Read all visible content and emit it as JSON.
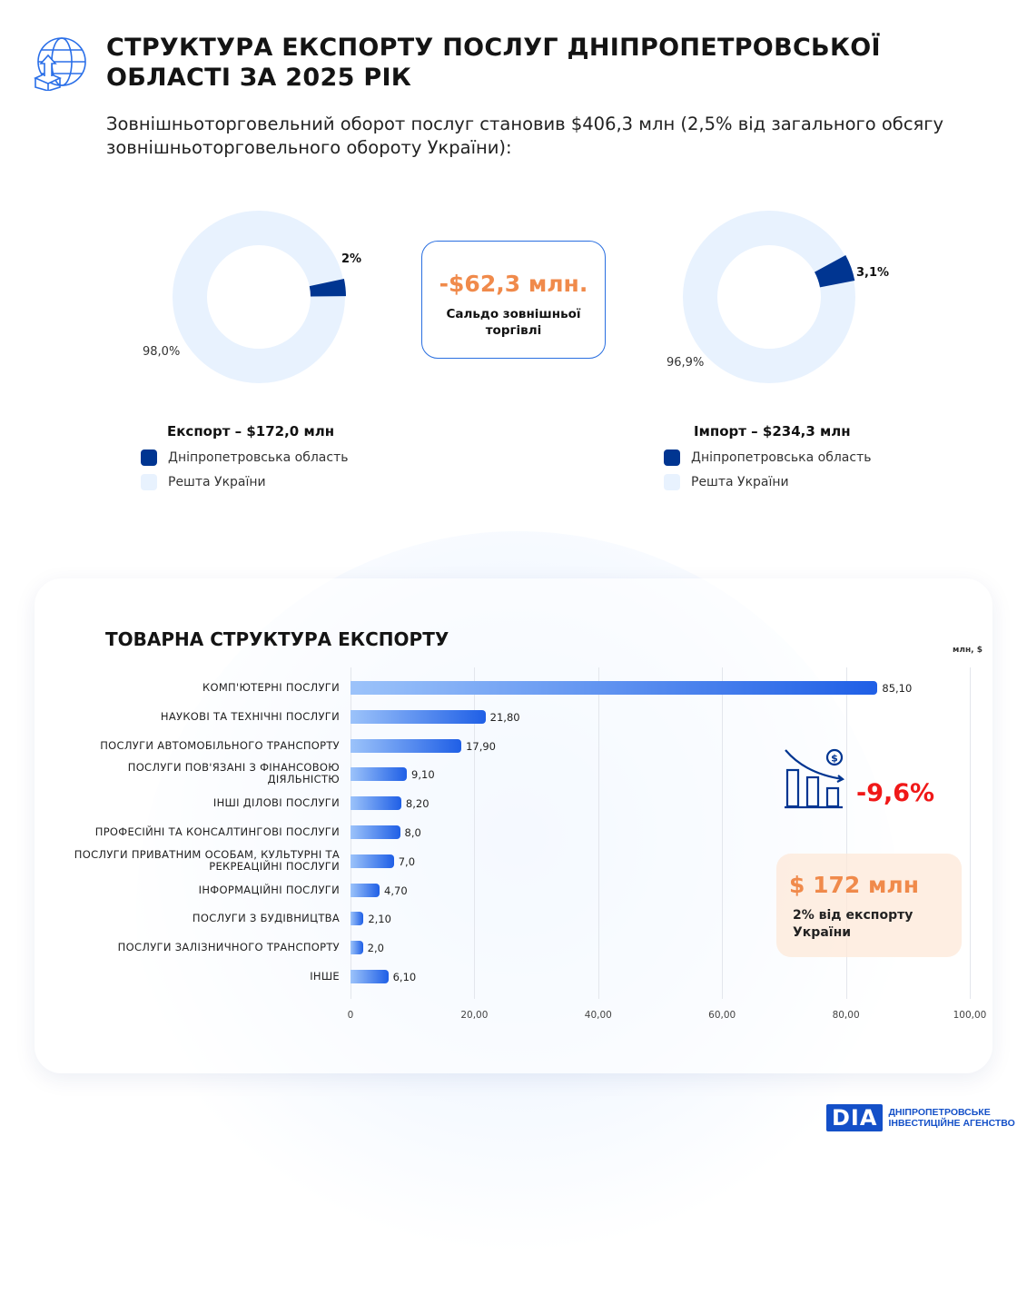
{
  "header": {
    "title_line1": "СТРУКТУРА ЕКСПОРТУ ПОСЛУГ ДНІПРОПЕТРОВСЬКОЇ",
    "title_line2": "ОБЛАСТІ ЗА 2025 РІК",
    "subtitle": "Зовнішньоторговельний оборот послуг становив $406,3 млн (2,5% від загального обсягу зовнішньоторговельного обороту України):"
  },
  "colors": {
    "region": "#003591",
    "rest": "#e8f2fe",
    "accent_orange": "#f08a4b",
    "negative": "#f01818",
    "bar_start": "#9cc3fa",
    "bar_end": "#1f5fe6"
  },
  "export_donut": {
    "title": "Експорт – $172,0 млн",
    "region_label": "2%",
    "rest_label": "98,0%",
    "region_share": 2.0,
    "legend": [
      "Дніпропетровська область",
      "Решта України"
    ]
  },
  "import_donut": {
    "title": "Імпорт – $234,3 млн",
    "region_label": "3,1%",
    "rest_label": "96,9%",
    "region_share": 3.1,
    "legend": [
      "Дніпропетровська область",
      "Решта України"
    ]
  },
  "balance": {
    "value": "-$62,3 млн.",
    "label": "Сальдо зовнішньої торгівлі"
  },
  "chart_data": {
    "type": "bar",
    "orientation": "horizontal",
    "title": "ТОВАРНА СТРУКТУРА ЕКСПОРТУ",
    "unit": "млн, $",
    "xlim": [
      0,
      100
    ],
    "grid": true,
    "ticks": [
      "0",
      "20,00",
      "40,00",
      "60,00",
      "80,00",
      "100,00"
    ],
    "categories": [
      "КОМП'ЮТЕРНІ ПОСЛУГИ",
      "НАУКОВІ ТА ТЕХНІЧНІ ПОСЛУГИ",
      "ПОСЛУГИ АВТОМОБІЛЬНОГО ТРАНСПОРТУ",
      "ПОСЛУГИ ПОВ'ЯЗАНІ З ФІНАНСОВОЮ ДІЯЛЬНІСТЮ",
      "ІНШІ ДІЛОВІ ПОСЛУГИ",
      "ПРОФЕСІЙНІ ТА КОНСАЛТИНГОВІ ПОСЛУГИ",
      "ПОСЛУГИ ПРИВАТНИМ ОСОБАМ, КУЛЬТУРНІ ТА РЕКРЕАЦІЙНІ ПОСЛУГИ",
      "ІНФОРМАЦІЙНІ ПОСЛУГИ",
      "ПОСЛУГИ З БУДІВНИЦТВА",
      "ПОСЛУГИ ЗАЛІЗНИЧНОГО ТРАНСПОРТУ",
      "ІНШЕ"
    ],
    "values": [
      85.1,
      21.8,
      17.9,
      9.1,
      8.2,
      8.0,
      7.0,
      4.7,
      2.1,
      2.0,
      6.1
    ],
    "value_labels": [
      "85,10",
      "21,80",
      "17,90",
      "9,10",
      "8,20",
      "8,0",
      "7,0",
      "4,70",
      "2,10",
      "2,0",
      "6,10"
    ]
  },
  "change": {
    "value": "-9,6%",
    "icon": "declining-bar-chart-dollar-icon"
  },
  "total": {
    "value": "$ 172 млн",
    "label": "2% від експорту України"
  },
  "logo": {
    "mark": "DIA",
    "line1": "ДНІПРОПЕТРОВСЬКЕ",
    "line2": "ІНВЕСТИЦІЙНЕ АГЕНСТВО"
  }
}
